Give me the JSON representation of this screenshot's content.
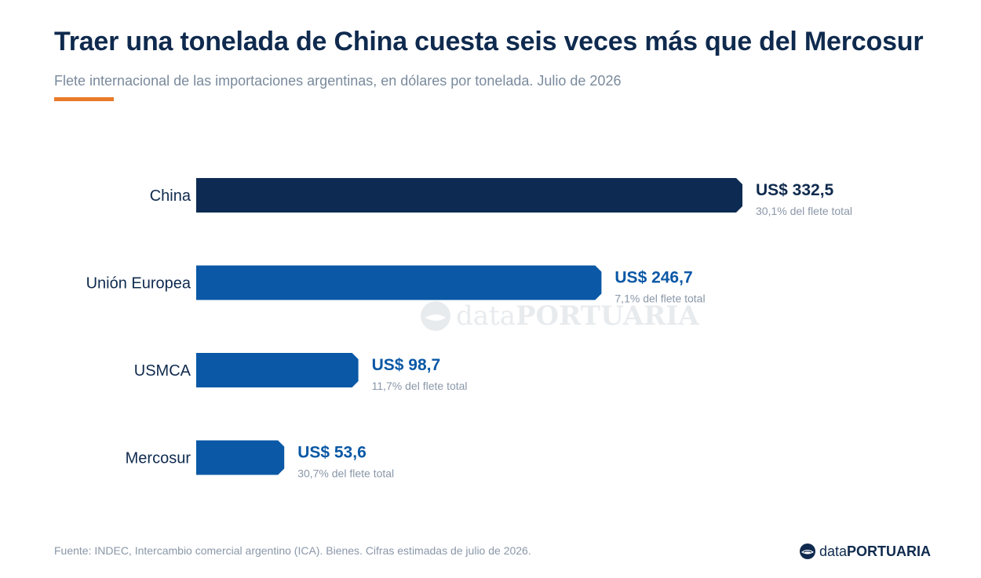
{
  "header": {
    "title": "Traer una tonelada de China cuesta seis veces más que del Mercosur",
    "subtitle": "Flete internacional de las importaciones argentinas, en dólares por tonelada. Julio de 2026"
  },
  "colors": {
    "accent": "#e97a2a",
    "china_bar": "#0d2b52",
    "other_bars": "#0a58a6",
    "title": "#0f2a4e",
    "muted": "#8a97a8"
  },
  "chart_data": {
    "type": "bar",
    "orientation": "horizontal",
    "categories": [
      "China",
      "Unión Europea",
      "USMCA",
      "Mercosur"
    ],
    "values": [
      332.5,
      246.7,
      98.7,
      53.6
    ],
    "value_labels": [
      "US$ 332,5",
      "US$ 246,7",
      "US$ 98,7",
      "US$ 53,6"
    ],
    "share_labels": [
      "30,1% del flete total",
      "7,1% del flete total",
      "11,7% del flete total",
      "30,7% del flete total"
    ],
    "xlim": [
      0,
      332.5
    ],
    "grid": false,
    "legend": "none"
  },
  "watermark": {
    "brand_light": "data",
    "brand_bold": "PORTUARIA"
  },
  "footer": {
    "source": "Fuente: INDEC, Intercambio comercial argentino (ICA). Bienes. Cifras estimadas de julio de 2026.",
    "logo_light": "data",
    "logo_bold": "PORTUARIA"
  }
}
